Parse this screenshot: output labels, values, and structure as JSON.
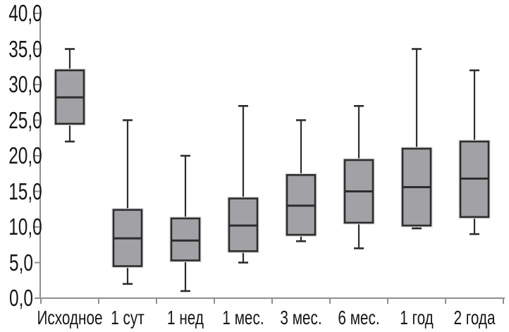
{
  "chart_data": {
    "type": "boxplot",
    "title": "",
    "xlabel": "",
    "ylabel": "",
    "ylim": [
      0,
      40
    ],
    "ytick_step": 5,
    "ytick_labels": [
      "0,0",
      "5,0",
      "10,0",
      "15,0",
      "20,0",
      "25,0",
      "30,0",
      "35,0",
      "40,0"
    ],
    "grid": false,
    "legend": null,
    "decimal_separator": ",",
    "categories": [
      "Исходное",
      "1 сут",
      "1 нед",
      "1 мес.",
      "3 мес.",
      "6 мес.",
      "1 год",
      "2 года"
    ],
    "series": [
      {
        "label": "Исходное",
        "min": 22.0,
        "q1": 24.5,
        "median": 28.2,
        "q3": 32.0,
        "max": 35.0
      },
      {
        "label": "1 сут",
        "min": 2.0,
        "q1": 4.5,
        "median": 8.4,
        "q3": 12.4,
        "max": 25.0
      },
      {
        "label": "1 нед",
        "min": 1.0,
        "q1": 5.3,
        "median": 8.1,
        "q3": 11.2,
        "max": 20.0
      },
      {
        "label": "1 мес.",
        "min": 5.0,
        "q1": 6.6,
        "median": 10.2,
        "q3": 14.0,
        "max": 27.0
      },
      {
        "label": "3 мес.",
        "min": 8.0,
        "q1": 8.9,
        "median": 13.0,
        "q3": 17.3,
        "max": 25.0
      },
      {
        "label": "6 мес.",
        "min": 7.0,
        "q1": 10.6,
        "median": 15.0,
        "q3": 19.4,
        "max": 27.0
      },
      {
        "label": "1 год",
        "min": 9.8,
        "q1": 10.2,
        "median": 15.6,
        "q3": 21.0,
        "max": 35.0
      },
      {
        "label": "2 года",
        "min": 9.0,
        "q1": 11.4,
        "median": 16.8,
        "q3": 22.0,
        "max": 32.0
      }
    ]
  },
  "colors": {
    "background": "#ffffff",
    "box_fill": "#a2a2a6",
    "box_border": "#2d2d2d",
    "box_halo": "#d7d7d7",
    "whisker": "#2d2d2d",
    "axis": "#8f8f8f",
    "text": "#161616"
  }
}
